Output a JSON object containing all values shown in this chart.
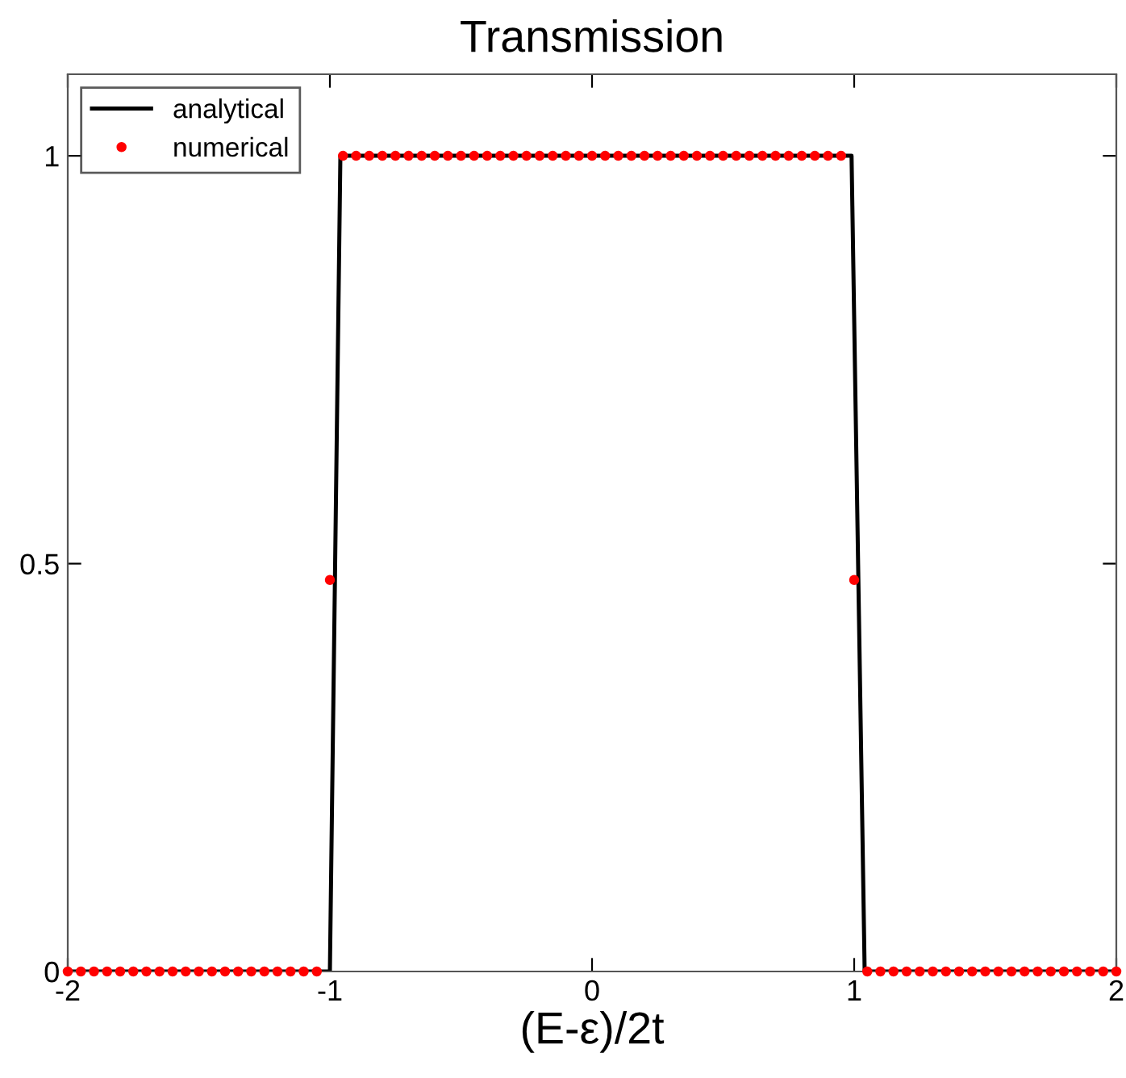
{
  "chart_data": {
    "type": "line",
    "title": "Transmission",
    "xlabel": "(E-ε)/2t",
    "xlim": [
      -2,
      2
    ],
    "xticks": [
      -2,
      -1,
      0,
      1,
      2
    ],
    "ylim": [
      0,
      1.1
    ],
    "yticks": [
      0,
      0.5,
      1
    ],
    "grid": false,
    "legend": "top left",
    "series": [
      {
        "name": "analytical",
        "color": "#000000",
        "marker": "none",
        "line_style": "solid",
        "x": [
          -2,
          -1.0,
          -0.96,
          0.99,
          1.04,
          2
        ],
        "values": [
          0,
          0,
          1,
          1,
          0,
          0
        ]
      },
      {
        "name": "numerical",
        "type": "scatter",
        "color": "#ff0000",
        "marker": "circle",
        "x": [
          -2.0,
          -1.95,
          -1.9,
          -1.85,
          -1.8,
          -1.75,
          -1.7,
          -1.65,
          -1.6,
          -1.55,
          -1.5,
          -1.45,
          -1.4,
          -1.35,
          -1.3,
          -1.25,
          -1.2,
          -1.15,
          -1.1,
          -1.05,
          -1.0,
          -0.95,
          -0.9,
          -0.85,
          -0.8,
          -0.75,
          -0.7,
          -0.65,
          -0.6,
          -0.55,
          -0.5,
          -0.45,
          -0.4,
          -0.35,
          -0.3,
          -0.25,
          -0.2,
          -0.15,
          -0.1,
          -0.05,
          0.0,
          0.05,
          0.1,
          0.15,
          0.2,
          0.25,
          0.3,
          0.35,
          0.4,
          0.45,
          0.5,
          0.55,
          0.6,
          0.65,
          0.7,
          0.75,
          0.8,
          0.85,
          0.9,
          0.95,
          1.0,
          1.05,
          1.1,
          1.15,
          1.2,
          1.25,
          1.3,
          1.35,
          1.4,
          1.45,
          1.5,
          1.55,
          1.6,
          1.65,
          1.7,
          1.75,
          1.8,
          1.85,
          1.9,
          1.95,
          2.0
        ],
        "values": [
          0,
          0,
          0,
          0,
          0,
          0,
          0,
          0,
          0,
          0,
          0,
          0,
          0,
          0,
          0,
          0,
          0,
          0,
          0,
          0,
          0.48,
          1,
          1,
          1,
          1,
          1,
          1,
          1,
          1,
          1,
          1,
          1,
          1,
          1,
          1,
          1,
          1,
          1,
          1,
          1,
          1,
          1,
          1,
          1,
          1,
          1,
          1,
          1,
          1,
          1,
          1,
          1,
          1,
          1,
          1,
          1,
          1,
          1,
          1,
          1,
          0.48,
          0,
          0,
          0,
          0,
          0,
          0,
          0,
          0,
          0,
          0,
          0,
          0,
          0,
          0,
          0,
          0,
          0,
          0,
          0,
          0
        ]
      }
    ]
  }
}
